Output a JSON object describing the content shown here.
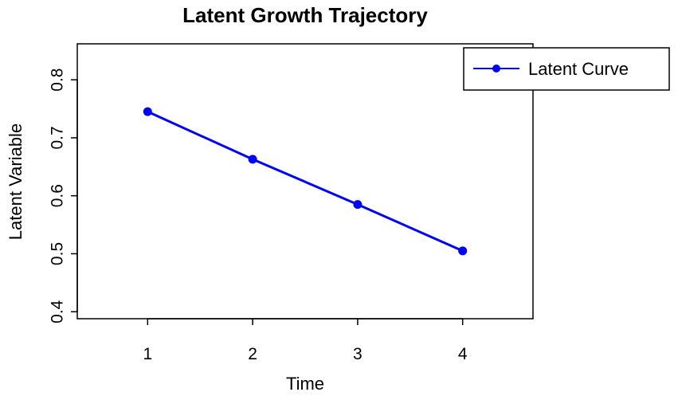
{
  "chart_data": {
    "type": "line",
    "title": "Latent Growth Trajectory",
    "xlabel": "Time",
    "ylabel": "Latent Variable",
    "x": [
      1,
      2,
      3,
      4
    ],
    "x_ticks": [
      1,
      2,
      3,
      4
    ],
    "y_ticks": [
      0.4,
      0.5,
      0.6,
      0.7,
      0.8
    ],
    "y_tick_labels": [
      "0.4",
      "0.5",
      "0.6",
      "0.7",
      "0.8"
    ],
    "xlim": [
      0.33,
      4.67
    ],
    "ylim": [
      0.388,
      0.862
    ],
    "grid": false,
    "legend_position": "top-right",
    "series": [
      {
        "name": "Latent Curve",
        "color": "#0000ff",
        "marker": "circle",
        "values": [
          0.745,
          0.663,
          0.585,
          0.505
        ]
      }
    ]
  }
}
